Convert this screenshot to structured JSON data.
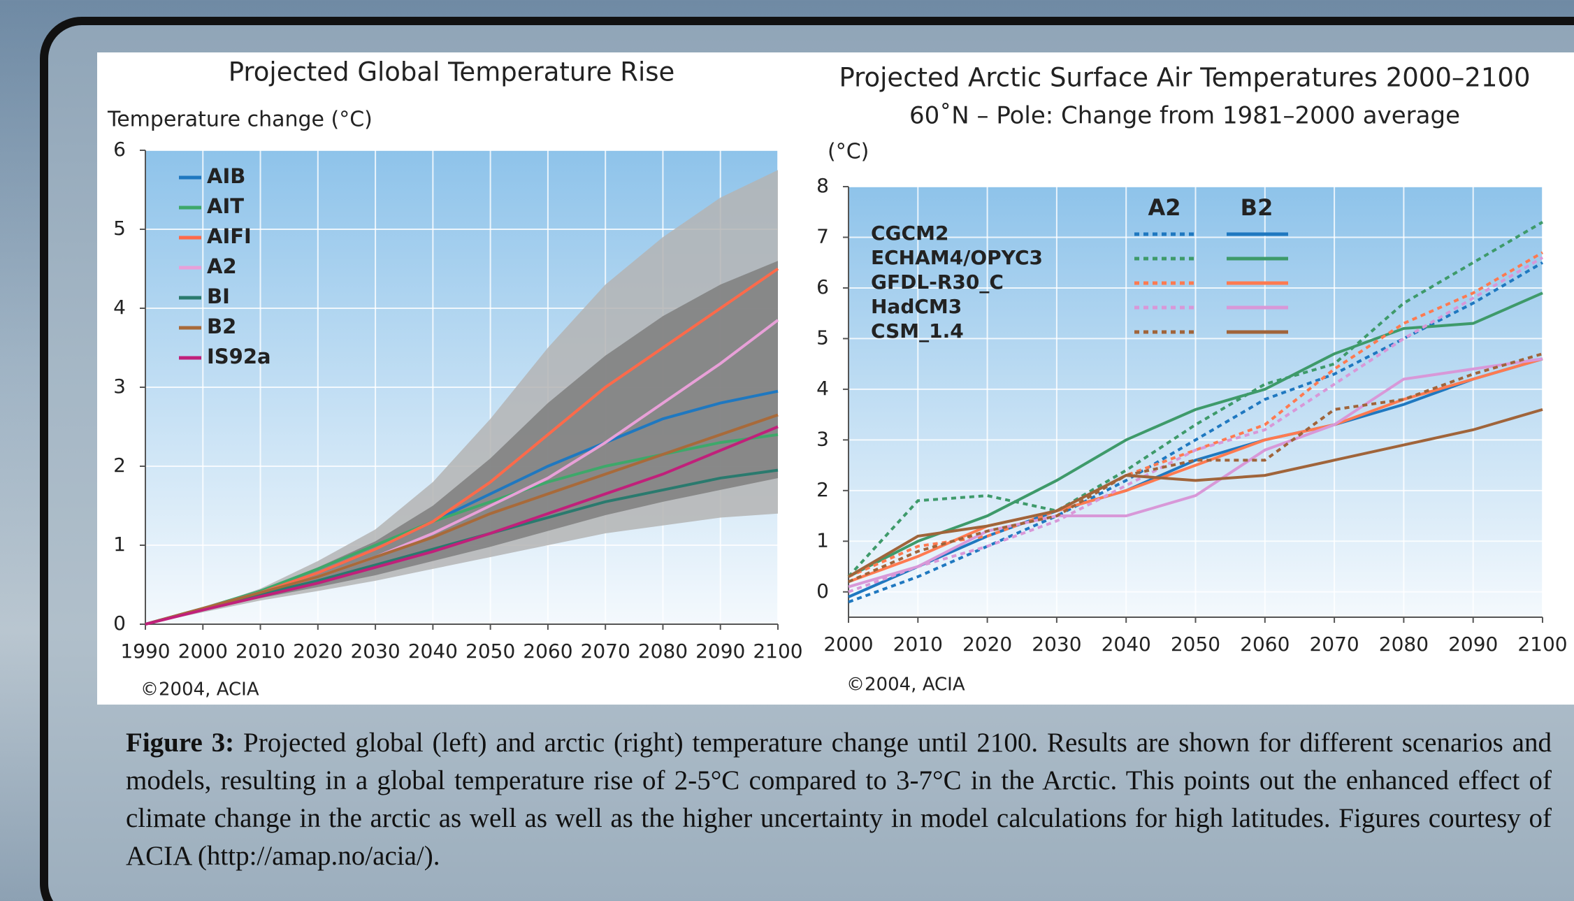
{
  "chart_data": [
    {
      "type": "line",
      "title": "Projected Global Temperature Rise",
      "y_label": "Temperature change (°C)",
      "credit": "©2004, ACIA",
      "x": [
        1990,
        2000,
        2010,
        2020,
        2030,
        2040,
        2050,
        2060,
        2070,
        2080,
        2090,
        2100
      ],
      "xlim": [
        1990,
        2100
      ],
      "xticks": [
        1990,
        2000,
        2010,
        2020,
        2030,
        2040,
        2050,
        2060,
        2070,
        2080,
        2090,
        2100
      ],
      "ylim": [
        0,
        6
      ],
      "yticks": [
        0,
        1,
        2,
        3,
        4,
        5,
        6
      ],
      "grid": true,
      "legend": "upper left",
      "bands": [
        {
          "color": "#b4b4b4",
          "upper": [
            0,
            0.2,
            0.45,
            0.8,
            1.2,
            1.8,
            2.6,
            3.5,
            4.3,
            4.9,
            5.4,
            5.75
          ],
          "lower": [
            0,
            0.15,
            0.3,
            0.42,
            0.55,
            0.7,
            0.85,
            1.0,
            1.15,
            1.25,
            1.35,
            1.4
          ]
        },
        {
          "color": "#7f7f7f",
          "upper": [
            0,
            0.2,
            0.43,
            0.72,
            1.05,
            1.5,
            2.1,
            2.8,
            3.4,
            3.9,
            4.3,
            4.6
          ],
          "lower": [
            0,
            0.17,
            0.33,
            0.47,
            0.62,
            0.8,
            0.98,
            1.18,
            1.38,
            1.55,
            1.7,
            1.85
          ]
        }
      ],
      "series": [
        {
          "name": "AIB",
          "color": "#1f78c0",
          "values": [
            0,
            0.2,
            0.4,
            0.65,
            0.95,
            1.3,
            1.65,
            2.0,
            2.3,
            2.6,
            2.8,
            2.95
          ]
        },
        {
          "name": "AIT",
          "color": "#3ea86a",
          "values": [
            0,
            0.2,
            0.42,
            0.7,
            1.0,
            1.3,
            1.55,
            1.8,
            2.0,
            2.15,
            2.3,
            2.4
          ]
        },
        {
          "name": "AIFI",
          "color": "#ff6a4a",
          "values": [
            0,
            0.2,
            0.4,
            0.65,
            0.95,
            1.3,
            1.8,
            2.4,
            3.0,
            3.5,
            4.0,
            4.5
          ]
        },
        {
          "name": "A2",
          "color": "#e8a0d8",
          "values": [
            0,
            0.2,
            0.4,
            0.6,
            0.85,
            1.15,
            1.5,
            1.85,
            2.3,
            2.8,
            3.3,
            3.85
          ]
        },
        {
          "name": "BI",
          "color": "#2a7a6e",
          "values": [
            0,
            0.2,
            0.38,
            0.55,
            0.75,
            0.95,
            1.15,
            1.35,
            1.55,
            1.7,
            1.85,
            1.95
          ]
        },
        {
          "name": "B2",
          "color": "#a86a3a",
          "values": [
            0,
            0.2,
            0.4,
            0.6,
            0.85,
            1.1,
            1.4,
            1.65,
            1.9,
            2.15,
            2.4,
            2.65
          ]
        },
        {
          "name": "IS92a",
          "color": "#c0207a",
          "values": [
            0,
            0.18,
            0.35,
            0.52,
            0.72,
            0.92,
            1.15,
            1.4,
            1.65,
            1.9,
            2.2,
            2.5
          ]
        }
      ]
    },
    {
      "type": "line",
      "title": "Projected Arctic Surface Air Temperatures 2000–2100",
      "subtitle": "60˚N – Pole: Change from 1981–2000 average",
      "y_label": "(°C)",
      "credit": "©2004, ACIA",
      "x": [
        2000,
        2010,
        2020,
        2030,
        2040,
        2050,
        2060,
        2070,
        2080,
        2090,
        2100
      ],
      "xlim": [
        2000,
        2100
      ],
      "xticks": [
        2000,
        2010,
        2020,
        2030,
        2040,
        2050,
        2060,
        2070,
        2080,
        2090,
        2100
      ],
      "ylim": [
        -0.5,
        8
      ],
      "yticks": [
        0,
        1,
        2,
        3,
        4,
        5,
        6,
        7,
        8
      ],
      "grid": true,
      "legend": "upper left",
      "scenarios": [
        {
          "name": "A2",
          "style": "dotted"
        },
        {
          "name": "B2",
          "style": "solid"
        }
      ],
      "series": [
        {
          "name": "CGCM2",
          "color": "#1f78c0",
          "values": [
            [
              -0.2,
              0.3,
              0.9,
              1.5,
              2.2,
              3.0,
              3.8,
              4.3,
              5.0,
              5.7,
              6.5
            ],
            [
              -0.1,
              0.5,
              1.1,
              1.6,
              2.0,
              2.6,
              3.0,
              3.3,
              3.7,
              4.2,
              4.6
            ]
          ]
        },
        {
          "name": "ECHAM4/OPYC3",
          "color": "#3e9a6a",
          "values": [
            [
              0.3,
              1.8,
              1.9,
              1.6,
              2.4,
              3.3,
              4.1,
              4.5,
              5.7,
              6.5,
              7.3
            ],
            [
              0.3,
              1.0,
              1.5,
              2.2,
              3.0,
              3.6,
              4.0,
              4.7,
              5.2,
              5.3,
              5.9
            ]
          ]
        },
        {
          "name": "GFDL-R30_C",
          "color": "#ff7a50",
          "values": [
            [
              0.3,
              0.9,
              1.1,
              1.6,
              2.3,
              2.8,
              3.3,
              4.4,
              5.3,
              5.9,
              6.7
            ],
            [
              0.2,
              0.7,
              1.3,
              1.6,
              2.0,
              2.5,
              3.0,
              3.3,
              3.8,
              4.2,
              4.6
            ]
          ]
        },
        {
          "name": "HadCM3",
          "color": "#d898d8",
          "values": [
            [
              0.0,
              0.5,
              0.9,
              1.4,
              2.1,
              2.8,
              3.2,
              4.1,
              5.0,
              5.8,
              6.6
            ],
            [
              0.1,
              0.5,
              1.2,
              1.5,
              1.5,
              1.9,
              2.8,
              3.3,
              4.2,
              4.4,
              4.6
            ]
          ]
        },
        {
          "name": "CSM_1.4",
          "color": "#a0643a",
          "values": [
            [
              0.2,
              0.8,
              1.2,
              1.5,
              2.3,
              2.6,
              2.6,
              3.6,
              3.8,
              4.3,
              4.7
            ],
            [
              0.3,
              1.1,
              1.3,
              1.6,
              2.3,
              2.2,
              2.3,
              2.6,
              2.9,
              3.2,
              3.6
            ]
          ]
        }
      ]
    }
  ],
  "caption": {
    "label": "Figure 3:",
    "text": "Projected global (left) and arctic (right) temperature change until 2100. Results are shown for different scenarios and models, resulting in a global temperature rise of 2-5°C compared to 3-7°C in the Arctic. This points out the enhanced effect of climate change in the arctic as well as well as the higher uncertainty in model calculations for high latitudes. Figures courtesy of ACIA (http://amap.no/acia/)."
  }
}
